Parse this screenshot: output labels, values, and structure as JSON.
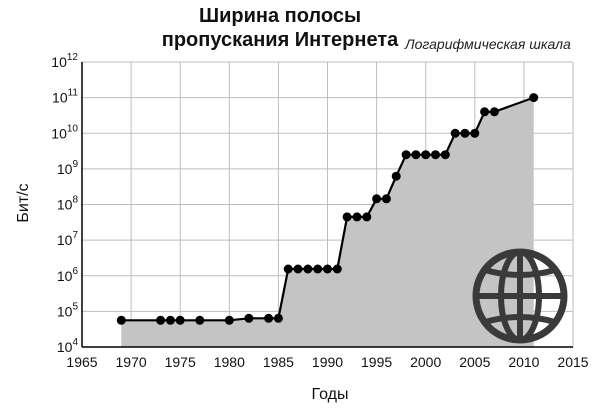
{
  "chart_data": {
    "type": "line",
    "title_line1": "Ширина полосы",
    "title_line2": "пропускания Интернета",
    "subtitle": "Логарифмическая шкала",
    "xlabel": "Годы",
    "ylabel": "Бит/с",
    "xlim": [
      1965,
      2015
    ],
    "ylim": [
      10000,
      1000000000000
    ],
    "yscale": "log",
    "x_ticks": [
      "1965",
      "1970",
      "1975",
      "1980",
      "1985",
      "1990",
      "1995",
      "2000",
      "2005",
      "2010",
      "2015"
    ],
    "y_ticks_exp": [
      "4",
      "5",
      "6",
      "7",
      "8",
      "9",
      "10",
      "11",
      "12"
    ],
    "y_tick_base": "10",
    "grid": true,
    "area_fill": true,
    "series": [
      {
        "x": [
          1969,
          1973,
          1974,
          1975,
          1977,
          1980,
          1982,
          1984,
          1985,
          1986,
          1987,
          1988,
          1989,
          1990,
          1991,
          1992,
          1993,
          1994,
          1995,
          1996,
          1997,
          1998,
          1999,
          2000,
          2001,
          2002,
          2003,
          2004,
          2005,
          2006,
          2007,
          2011
        ],
        "y": [
          56000,
          56000,
          56000,
          56000,
          56000,
          56000,
          64000,
          64000,
          64000,
          1544000,
          1544000,
          1544000,
          1544000,
          1544000,
          1544000,
          45000000,
          45000000,
          45000000,
          145000000,
          145000000,
          622000000,
          2500000000,
          2500000000,
          2500000000,
          2500000000,
          2500000000,
          10000000000,
          10000000000,
          10000000000,
          40000000000,
          40000000000,
          100000000000
        ]
      }
    ],
    "colors": {
      "line": "#000000",
      "area": "#c4c4c4",
      "grid": "#bdbdbd",
      "globe": "#3a3a3a"
    },
    "icon": "globe-icon"
  }
}
